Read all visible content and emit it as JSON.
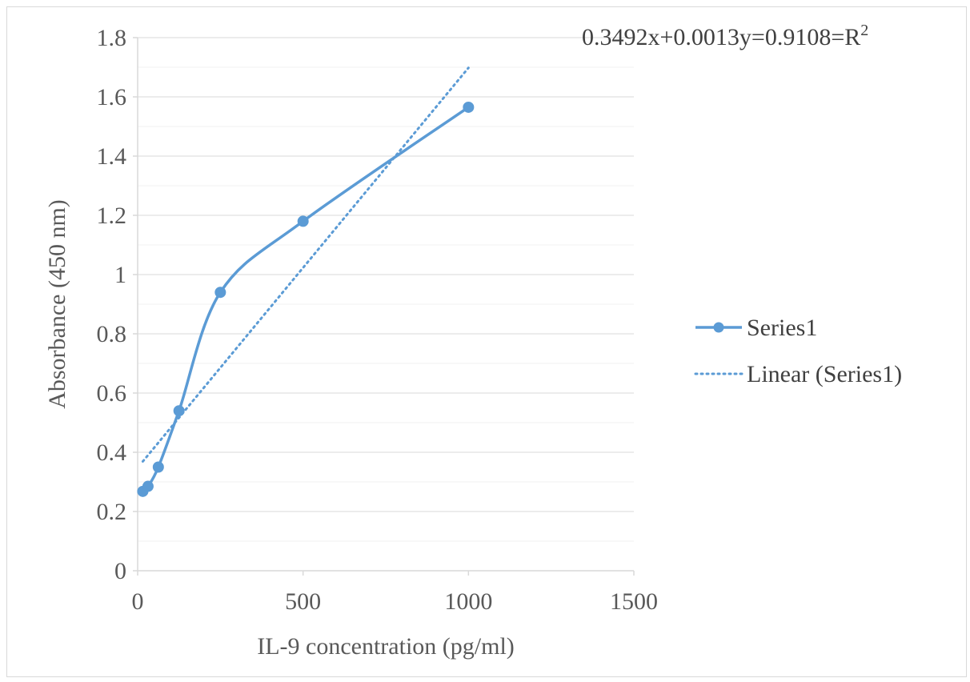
{
  "chart_data": {
    "type": "scatter",
    "title": "",
    "xlabel": "IL-9 concentration (pg/ml)",
    "ylabel": "Absorbance (450 nm)",
    "xlim": [
      0,
      1500
    ],
    "ylim": [
      0,
      1.8
    ],
    "x_ticks": [
      "0",
      "500",
      "1000",
      "1500"
    ],
    "y_ticks": [
      "0",
      "0.2",
      "0.4",
      "0.6",
      "0.8",
      "1",
      "1.2",
      "1.4",
      "1.6",
      "1.8"
    ],
    "grid": "horizontal major and minor gridlines",
    "legend_position": "right",
    "series": [
      {
        "name": "Series1",
        "color": "#5b9bd5",
        "line": "smoothed, with circle markers",
        "x": [
          15.6,
          31.3,
          62.5,
          125,
          250,
          500,
          1000
        ],
        "y": [
          0.268,
          0.285,
          0.35,
          0.54,
          0.94,
          1.18,
          1.565
        ]
      }
    ],
    "trendline": {
      "name": "Linear (Series1)",
      "color": "#5b9bd5",
      "style": "dotted",
      "x": [
        15.6,
        1000
      ],
      "y": [
        0.369,
        1.698
      ]
    },
    "annotation": {
      "equation": "0.3492x+0.0013y=0.9108=R",
      "superscript": "2"
    }
  }
}
